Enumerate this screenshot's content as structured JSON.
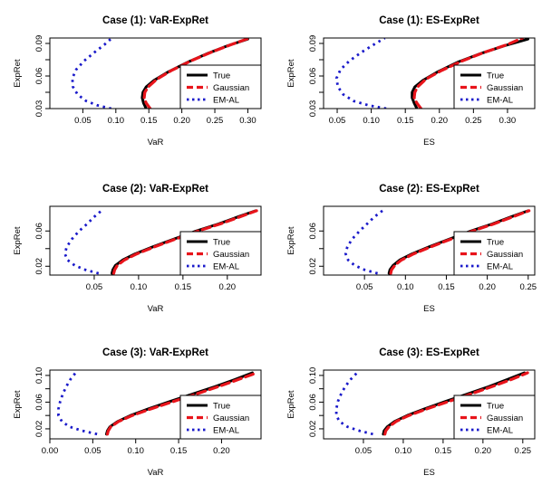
{
  "legend": {
    "entries": [
      {
        "label": "True",
        "color": "#000000",
        "dash": "solid"
      },
      {
        "label": "Gaussian",
        "color": "#e8141b",
        "dash": "dashed"
      },
      {
        "label": "EM-AL",
        "color": "#1a1aca",
        "dash": "dotted"
      }
    ],
    "placement": "bottom-right"
  },
  "chart_data": [
    {
      "type": "line",
      "title": "Case (1): VaR-ExpRet",
      "xlabel": "VaR",
      "ylabel": "ExpRet",
      "xlim": [
        0.0,
        0.32
      ],
      "ylim": [
        0.03,
        0.095
      ],
      "xticks": [
        0.05,
        0.1,
        0.15,
        0.2,
        0.25,
        0.3
      ],
      "xtick_labels": [
        "0.05",
        "0.10",
        "0.15",
        "0.20",
        "0.25",
        "0.30"
      ],
      "yticks": [
        0.03,
        0.06,
        0.09
      ],
      "ytick_labels": [
        "0.03",
        "0.06",
        "0.09"
      ],
      "grid": false,
      "series": [
        {
          "name": "True",
          "x": [
            0.146,
            0.142,
            0.14,
            0.141,
            0.146,
            0.158,
            0.18,
            0.21,
            0.24,
            0.27,
            0.3
          ],
          "y": [
            0.03,
            0.035,
            0.04,
            0.045,
            0.05,
            0.056,
            0.064,
            0.073,
            0.081,
            0.088,
            0.094
          ]
        },
        {
          "name": "Gaussian",
          "x": [
            0.152,
            0.146,
            0.143,
            0.144,
            0.149,
            0.162,
            0.184,
            0.214,
            0.245,
            0.275,
            0.303
          ],
          "y": [
            0.03,
            0.035,
            0.04,
            0.045,
            0.05,
            0.057,
            0.065,
            0.074,
            0.082,
            0.089,
            0.095
          ]
        },
        {
          "name": "EM-AL",
          "x": [
            0.093,
            0.072,
            0.055,
            0.042,
            0.035,
            0.034,
            0.04,
            0.052,
            0.068,
            0.083,
            0.094
          ],
          "y": [
            0.03,
            0.033,
            0.037,
            0.043,
            0.05,
            0.058,
            0.066,
            0.074,
            0.082,
            0.089,
            0.095
          ]
        }
      ]
    },
    {
      "type": "line",
      "title": "Case (1): ES-ExpRet",
      "xlabel": "ES",
      "ylabel": "ExpRet",
      "xlim": [
        0.03,
        0.34
      ],
      "ylim": [
        0.03,
        0.095
      ],
      "xticks": [
        0.05,
        0.1,
        0.15,
        0.2,
        0.25,
        0.3
      ],
      "xtick_labels": [
        "0.05",
        "0.10",
        "0.15",
        "0.20",
        "0.25",
        "0.30"
      ],
      "yticks": [
        0.03,
        0.06,
        0.09
      ],
      "ytick_labels": [
        "0.03",
        "0.06",
        "0.09"
      ],
      "grid": false,
      "series": [
        {
          "name": "True",
          "x": [
            0.167,
            0.163,
            0.16,
            0.16,
            0.164,
            0.176,
            0.198,
            0.228,
            0.262,
            0.296,
            0.33
          ],
          "y": [
            0.03,
            0.035,
            0.04,
            0.045,
            0.05,
            0.056,
            0.064,
            0.073,
            0.081,
            0.088,
            0.094
          ]
        },
        {
          "name": "Gaussian",
          "x": [
            0.173,
            0.167,
            0.163,
            0.164,
            0.168,
            0.18,
            0.203,
            0.234,
            0.267,
            0.3,
            0.322
          ],
          "y": [
            0.03,
            0.035,
            0.04,
            0.045,
            0.05,
            0.057,
            0.065,
            0.074,
            0.082,
            0.089,
            0.095
          ]
        },
        {
          "name": "EM-AL",
          "x": [
            0.122,
            0.096,
            0.074,
            0.059,
            0.051,
            0.049,
            0.055,
            0.068,
            0.086,
            0.104,
            0.12
          ],
          "y": [
            0.03,
            0.033,
            0.037,
            0.043,
            0.05,
            0.058,
            0.066,
            0.074,
            0.082,
            0.089,
            0.095
          ]
        }
      ]
    },
    {
      "type": "line",
      "title": "Case (2): VaR-ExpRet",
      "xlabel": "VaR",
      "ylabel": "ExpRet",
      "xlim": [
        0.0,
        0.238
      ],
      "ylim": [
        0.01,
        0.088
      ],
      "xticks": [
        0.05,
        0.1,
        0.15,
        0.2
      ],
      "xtick_labels": [
        "0.05",
        "0.10",
        "0.15",
        "0.20"
      ],
      "yticks": [
        0.02,
        0.06
      ],
      "ytick_labels": [
        "0.02",
        "0.06"
      ],
      "grid": false,
      "series": [
        {
          "name": "True",
          "x": [
            0.07,
            0.071,
            0.074,
            0.082,
            0.096,
            0.116,
            0.14,
            0.165,
            0.19,
            0.212,
            0.232
          ],
          "y": [
            0.012,
            0.016,
            0.021,
            0.027,
            0.034,
            0.042,
            0.051,
            0.06,
            0.068,
            0.076,
            0.083
          ]
        },
        {
          "name": "Gaussian",
          "x": [
            0.072,
            0.073,
            0.076,
            0.084,
            0.098,
            0.118,
            0.142,
            0.167,
            0.192,
            0.214,
            0.233
          ],
          "y": [
            0.012,
            0.016,
            0.021,
            0.027,
            0.034,
            0.042,
            0.051,
            0.06,
            0.068,
            0.076,
            0.083
          ]
        },
        {
          "name": "EM-AL",
          "x": [
            0.055,
            0.04,
            0.028,
            0.02,
            0.017,
            0.019,
            0.025,
            0.033,
            0.042,
            0.05,
            0.058
          ],
          "y": [
            0.012,
            0.016,
            0.021,
            0.027,
            0.034,
            0.042,
            0.051,
            0.06,
            0.068,
            0.076,
            0.083
          ]
        }
      ]
    },
    {
      "type": "line",
      "title": "Case (2): ES-ExpRet",
      "xlabel": "ES",
      "ylabel": "ExpRet",
      "xlim": [
        0.0,
        0.258
      ],
      "ylim": [
        0.01,
        0.088
      ],
      "xticks": [
        0.05,
        0.1,
        0.15,
        0.2,
        0.25
      ],
      "xtick_labels": [
        "0.05",
        "0.10",
        "0.15",
        "0.20",
        "0.25"
      ],
      "yticks": [
        0.02,
        0.06
      ],
      "ytick_labels": [
        "0.02",
        "0.06"
      ],
      "grid": false,
      "series": [
        {
          "name": "True",
          "x": [
            0.08,
            0.081,
            0.085,
            0.093,
            0.108,
            0.129,
            0.154,
            0.18,
            0.206,
            0.229,
            0.25
          ],
          "y": [
            0.012,
            0.016,
            0.021,
            0.027,
            0.034,
            0.042,
            0.051,
            0.06,
            0.068,
            0.076,
            0.083
          ]
        },
        {
          "name": "Gaussian",
          "x": [
            0.082,
            0.083,
            0.087,
            0.095,
            0.11,
            0.131,
            0.156,
            0.182,
            0.208,
            0.231,
            0.251
          ],
          "y": [
            0.012,
            0.016,
            0.021,
            0.027,
            0.034,
            0.042,
            0.051,
            0.06,
            0.068,
            0.076,
            0.083
          ]
        },
        {
          "name": "EM-AL",
          "x": [
            0.066,
            0.05,
            0.038,
            0.03,
            0.027,
            0.029,
            0.035,
            0.044,
            0.053,
            0.062,
            0.072
          ],
          "y": [
            0.012,
            0.016,
            0.021,
            0.027,
            0.034,
            0.042,
            0.051,
            0.06,
            0.068,
            0.076,
            0.083
          ]
        }
      ]
    },
    {
      "type": "line",
      "title": "Case (3): VaR-ExpRet",
      "xlabel": "VaR",
      "ylabel": "ExpRet",
      "xlim": [
        0.0,
        0.246
      ],
      "ylim": [
        0.005,
        0.108
      ],
      "xticks": [
        0.0,
        0.05,
        0.1,
        0.15,
        0.2
      ],
      "xtick_labels": [
        "0.00",
        "0.05",
        "0.10",
        "0.15",
        "0.20"
      ],
      "yticks": [
        0.02,
        0.06,
        0.1
      ],
      "ytick_labels": [
        "0.02",
        "0.06",
        "0.10"
      ],
      "grid": false,
      "series": [
        {
          "name": "True",
          "x": [
            0.066,
            0.067,
            0.07,
            0.079,
            0.094,
            0.115,
            0.14,
            0.166,
            0.192,
            0.216,
            0.236
          ],
          "y": [
            0.012,
            0.017,
            0.023,
            0.031,
            0.04,
            0.05,
            0.061,
            0.072,
            0.083,
            0.094,
            0.104
          ]
        },
        {
          "name": "Gaussian",
          "x": [
            0.067,
            0.068,
            0.071,
            0.08,
            0.096,
            0.118,
            0.144,
            0.17,
            0.196,
            0.22,
            0.241
          ],
          "y": [
            0.012,
            0.017,
            0.023,
            0.031,
            0.04,
            0.05,
            0.061,
            0.072,
            0.083,
            0.094,
            0.104
          ]
        },
        {
          "name": "EM-AL",
          "x": [
            0.055,
            0.038,
            0.023,
            0.014,
            0.01,
            0.01,
            0.012,
            0.015,
            0.019,
            0.024,
            0.03
          ],
          "y": [
            0.012,
            0.017,
            0.023,
            0.031,
            0.04,
            0.05,
            0.061,
            0.072,
            0.083,
            0.094,
            0.104
          ]
        }
      ]
    },
    {
      "type": "line",
      "title": "Case (3): ES-ExpRet",
      "xlabel": "ES",
      "ylabel": "ExpRet",
      "xlim": [
        0.0,
        0.265
      ],
      "ylim": [
        0.005,
        0.108
      ],
      "xticks": [
        0.05,
        0.1,
        0.15,
        0.2,
        0.25
      ],
      "xtick_labels": [
        "0.05",
        "0.10",
        "0.15",
        "0.20",
        "0.25"
      ],
      "yticks": [
        0.02,
        0.06,
        0.1
      ],
      "ytick_labels": [
        "0.02",
        "0.06",
        "0.10"
      ],
      "grid": false,
      "series": [
        {
          "name": "True",
          "x": [
            0.075,
            0.076,
            0.08,
            0.089,
            0.105,
            0.127,
            0.153,
            0.18,
            0.207,
            0.231,
            0.252
          ],
          "y": [
            0.012,
            0.017,
            0.023,
            0.031,
            0.04,
            0.05,
            0.061,
            0.072,
            0.083,
            0.094,
            0.104
          ]
        },
        {
          "name": "Gaussian",
          "x": [
            0.077,
            0.078,
            0.082,
            0.091,
            0.107,
            0.13,
            0.157,
            0.184,
            0.211,
            0.236,
            0.256
          ],
          "y": [
            0.012,
            0.017,
            0.023,
            0.031,
            0.04,
            0.05,
            0.061,
            0.072,
            0.083,
            0.094,
            0.104
          ]
        },
        {
          "name": "EM-AL",
          "x": [
            0.062,
            0.045,
            0.03,
            0.02,
            0.016,
            0.016,
            0.018,
            0.022,
            0.027,
            0.034,
            0.042
          ],
          "y": [
            0.012,
            0.017,
            0.023,
            0.031,
            0.04,
            0.05,
            0.061,
            0.072,
            0.083,
            0.094,
            0.104
          ]
        }
      ]
    }
  ]
}
